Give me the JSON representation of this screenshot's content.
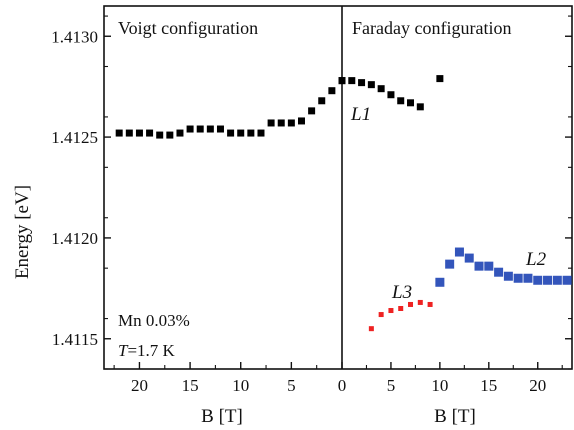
{
  "chart_data": {
    "type": "scatter",
    "title": "",
    "ylabel": "Energy [eV]",
    "ylim": [
      1.41135,
      1.41315
    ],
    "y_ticks": [
      "1.4115",
      "1.4120",
      "1.4125",
      "1.4130"
    ],
    "y_tick_values": [
      1.4115,
      1.412,
      1.4125,
      1.413
    ],
    "grid": false,
    "panels": [
      {
        "title": "Voigt configuration",
        "xlabel": "B [T]",
        "x_direction": "reversed",
        "xlim": [
          0,
          23.5
        ],
        "x_ticks": [
          "20",
          "15",
          "10",
          "5",
          "0"
        ],
        "x_tick_values": [
          20,
          15,
          10,
          5,
          0
        ]
      },
      {
        "title": "Faraday configuration",
        "xlabel": "B [T]",
        "x_direction": "normal",
        "xlim": [
          0,
          23.5
        ],
        "x_ticks": [
          "5",
          "10",
          "15",
          "20"
        ],
        "x_tick_values": [
          5,
          10,
          15,
          20
        ]
      }
    ],
    "series": [
      {
        "name": "",
        "panel": "Voigt configuration",
        "color": "#000000",
        "x": [
          22,
          21,
          20,
          19,
          18,
          17,
          16,
          15,
          14,
          13,
          12,
          11,
          10,
          9,
          8,
          7,
          6,
          5,
          4,
          3,
          2,
          1,
          0
        ],
        "y": [
          1.41252,
          1.41252,
          1.41252,
          1.41252,
          1.41251,
          1.41251,
          1.41252,
          1.41254,
          1.41254,
          1.41254,
          1.41254,
          1.41252,
          1.41252,
          1.41252,
          1.41252,
          1.41257,
          1.41257,
          1.41257,
          1.41258,
          1.41263,
          1.41268,
          1.41273,
          1.41278
        ]
      },
      {
        "name": "L1",
        "panel": "Faraday configuration",
        "color": "#000000",
        "x": [
          0,
          1,
          2,
          3,
          4,
          5,
          6,
          7,
          8,
          10
        ],
        "y": [
          1.41278,
          1.41278,
          1.41277,
          1.41276,
          1.41274,
          1.41271,
          1.41268,
          1.41267,
          1.41265,
          1.41279
        ]
      },
      {
        "name": "L2",
        "panel": "Faraday configuration",
        "color": "#3355bb",
        "x": [
          10,
          11,
          12,
          13,
          14,
          15,
          16,
          17,
          18,
          19,
          20,
          21,
          22,
          23
        ],
        "y": [
          1.41178,
          1.41187,
          1.41193,
          1.4119,
          1.41186,
          1.41186,
          1.41183,
          1.41181,
          1.4118,
          1.4118,
          1.41179,
          1.41179,
          1.41179,
          1.41179
        ]
      },
      {
        "name": "L3",
        "panel": "Faraday configuration",
        "color": "#ee2222",
        "x": [
          3,
          4,
          5,
          6,
          7,
          8,
          9
        ],
        "y": [
          1.41155,
          1.41162,
          1.41164,
          1.41165,
          1.41167,
          1.41168,
          1.41167
        ]
      }
    ],
    "annotations": [
      "Mn 0.03%",
      "T=1.7 K"
    ]
  },
  "annotation": {
    "sample": "Mn 0.03%",
    "temp_symbol": "T",
    "temp_value": "=1.7 K"
  }
}
